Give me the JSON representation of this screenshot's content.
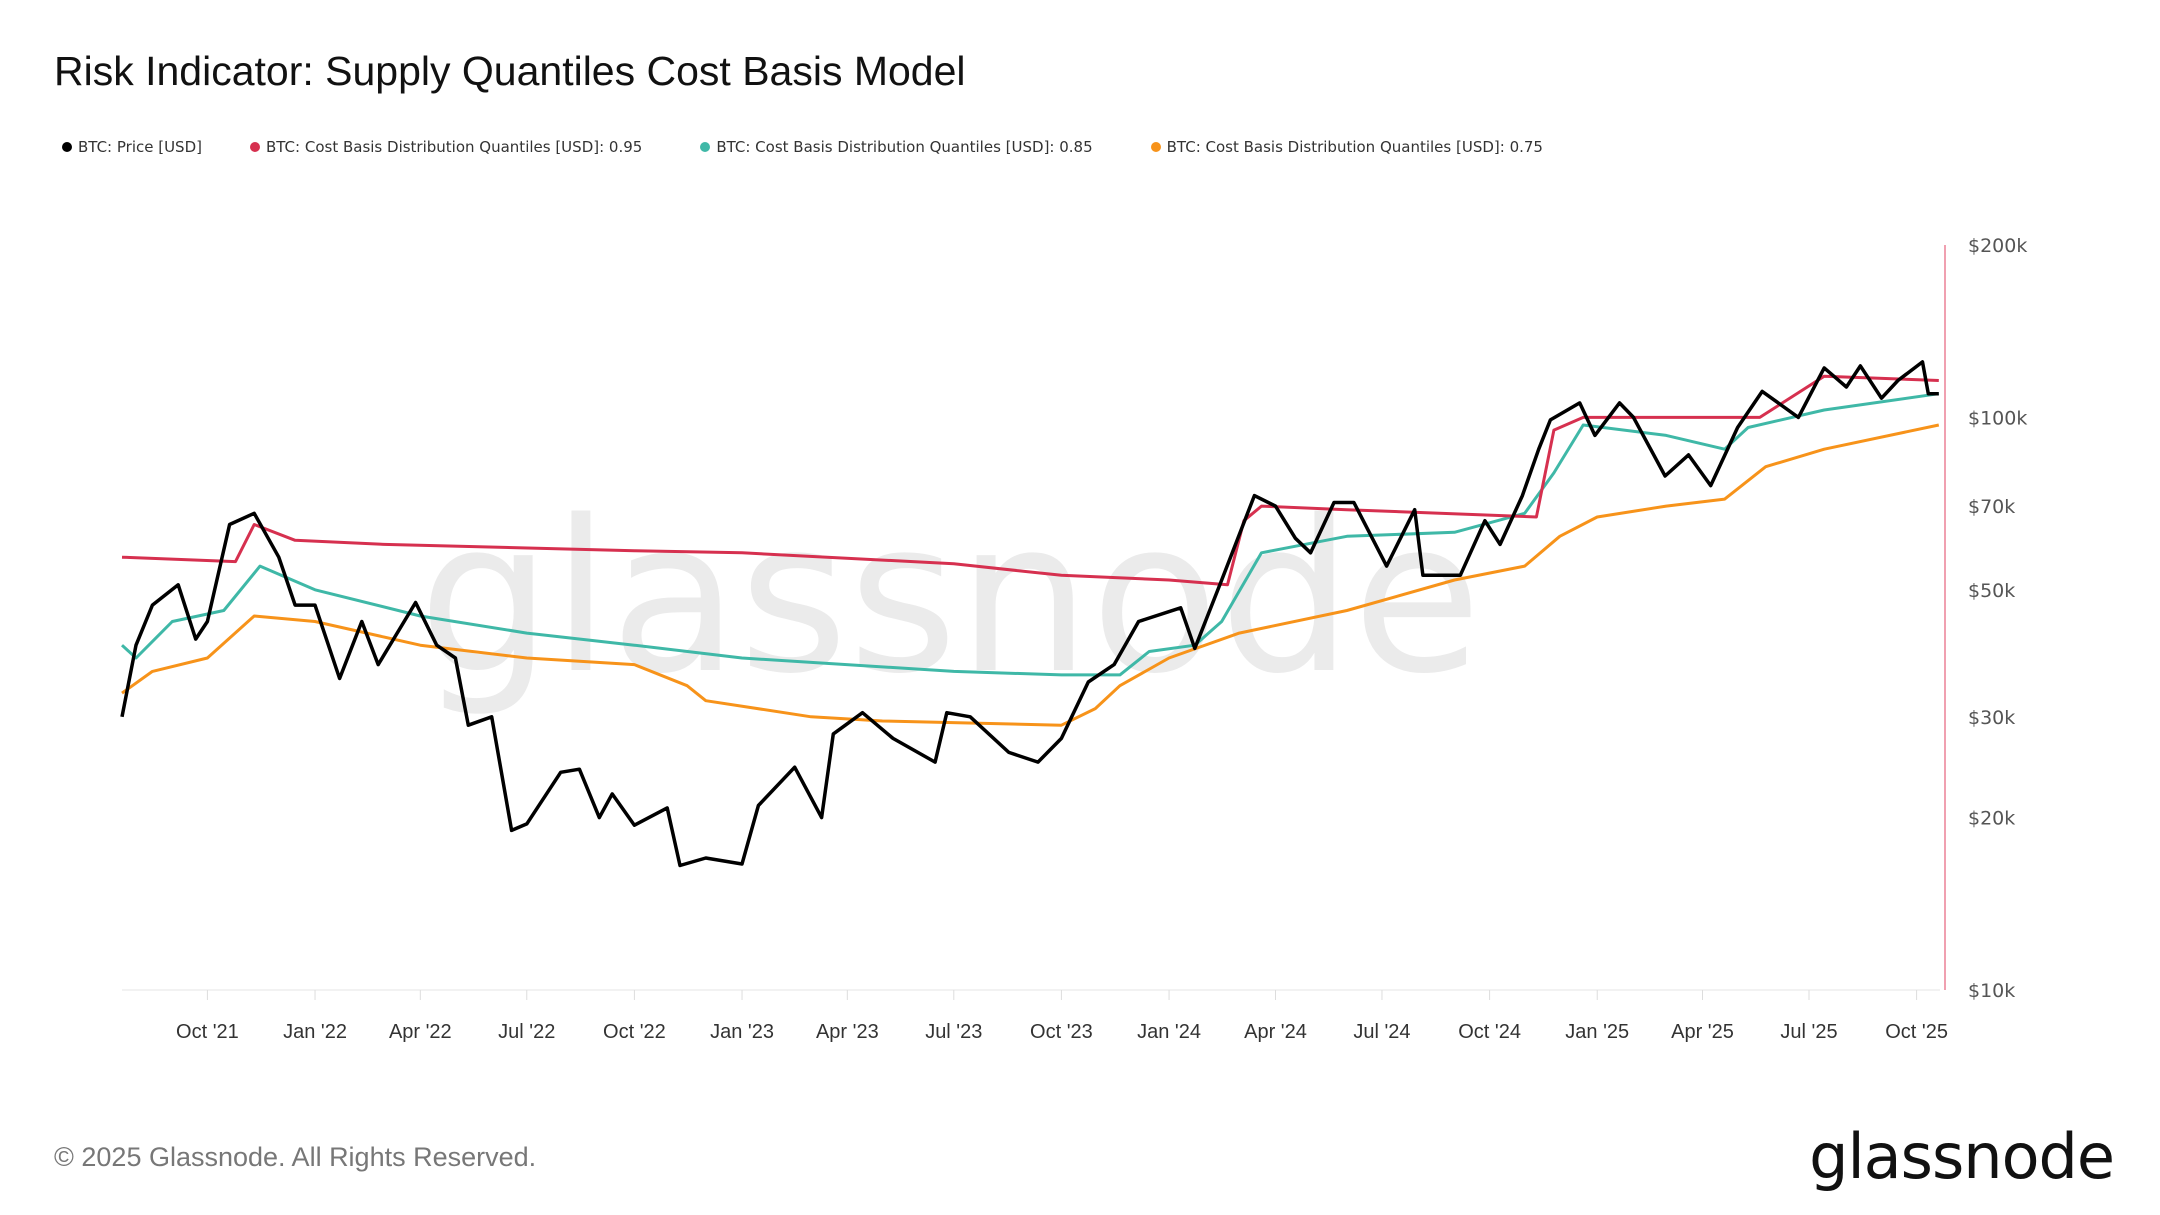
{
  "title": "Risk Indicator: Supply Quantiles Cost Basis Model",
  "copyright": "© 2025 Glassnode. All Rights Reserved.",
  "logo_text": "glassnode",
  "watermark_text": "glassnode",
  "chart_data": {
    "type": "line",
    "title": "Risk Indicator: Supply Quantiles Cost Basis Model",
    "y_scale": "log",
    "ylim": [
      10000,
      200000
    ],
    "xlim": [
      "2021-07-20",
      "2025-10-21"
    ],
    "grid": false,
    "legend_position": "top-left",
    "y_ticks": [
      {
        "value": 200000,
        "label": "$200k"
      },
      {
        "value": 100000,
        "label": "$100k"
      },
      {
        "value": 70000,
        "label": "$70k"
      },
      {
        "value": 50000,
        "label": "$50k"
      },
      {
        "value": 30000,
        "label": "$30k"
      },
      {
        "value": 20000,
        "label": "$20k"
      },
      {
        "value": 10000,
        "label": "$10k"
      }
    ],
    "x_ticks": [
      {
        "date": "2021-10-01",
        "label": "Oct '21"
      },
      {
        "date": "2022-01-01",
        "label": "Jan '22"
      },
      {
        "date": "2022-04-01",
        "label": "Apr '22"
      },
      {
        "date": "2022-07-01",
        "label": "Jul '22"
      },
      {
        "date": "2022-10-01",
        "label": "Oct '22"
      },
      {
        "date": "2023-01-01",
        "label": "Jan '23"
      },
      {
        "date": "2023-04-01",
        "label": "Apr '23"
      },
      {
        "date": "2023-07-01",
        "label": "Jul '23"
      },
      {
        "date": "2023-10-01",
        "label": "Oct '23"
      },
      {
        "date": "2024-01-01",
        "label": "Jan '24"
      },
      {
        "date": "2024-04-01",
        "label": "Apr '24"
      },
      {
        "date": "2024-07-01",
        "label": "Jul '24"
      },
      {
        "date": "2024-10-01",
        "label": "Oct '24"
      },
      {
        "date": "2025-01-01",
        "label": "Jan '25"
      },
      {
        "date": "2025-04-01",
        "label": "Apr '25"
      },
      {
        "date": "2025-07-01",
        "label": "Jul '25"
      },
      {
        "date": "2025-10-01",
        "label": "Oct '25"
      }
    ],
    "series": [
      {
        "name": "BTC: Price [USD]",
        "color": "#000000",
        "points": [
          [
            "2021-07-20",
            30000
          ],
          [
            "2021-08-01",
            40000
          ],
          [
            "2021-08-15",
            47000
          ],
          [
            "2021-09-06",
            51000
          ],
          [
            "2021-09-21",
            41000
          ],
          [
            "2021-10-01",
            44000
          ],
          [
            "2021-10-20",
            65000
          ],
          [
            "2021-11-10",
            68000
          ],
          [
            "2021-12-01",
            57000
          ],
          [
            "2021-12-15",
            47000
          ],
          [
            "2022-01-01",
            47000
          ],
          [
            "2022-01-22",
            35000
          ],
          [
            "2022-02-10",
            44000
          ],
          [
            "2022-02-24",
            37000
          ],
          [
            "2022-03-28",
            47500
          ],
          [
            "2022-04-15",
            40000
          ],
          [
            "2022-05-01",
            38000
          ],
          [
            "2022-05-12",
            29000
          ],
          [
            "2022-06-01",
            30000
          ],
          [
            "2022-06-18",
            19000
          ],
          [
            "2022-07-01",
            19500
          ],
          [
            "2022-07-30",
            24000
          ],
          [
            "2022-08-15",
            24300
          ],
          [
            "2022-09-01",
            20000
          ],
          [
            "2022-09-12",
            22000
          ],
          [
            "2022-10-01",
            19400
          ],
          [
            "2022-10-29",
            20800
          ],
          [
            "2022-11-09",
            16500
          ],
          [
            "2022-12-01",
            17000
          ],
          [
            "2023-01-01",
            16600
          ],
          [
            "2023-01-15",
            21000
          ],
          [
            "2023-02-15",
            24500
          ],
          [
            "2023-03-10",
            20000
          ],
          [
            "2023-03-20",
            28000
          ],
          [
            "2023-04-14",
            30500
          ],
          [
            "2023-05-10",
            27500
          ],
          [
            "2023-06-15",
            25000
          ],
          [
            "2023-06-25",
            30500
          ],
          [
            "2023-07-15",
            30000
          ],
          [
            "2023-08-17",
            26000
          ],
          [
            "2023-09-11",
            25000
          ],
          [
            "2023-10-01",
            27500
          ],
          [
            "2023-10-24",
            34500
          ],
          [
            "2023-11-15",
            37000
          ],
          [
            "2023-12-06",
            44000
          ],
          [
            "2024-01-11",
            46500
          ],
          [
            "2024-01-23",
            39500
          ],
          [
            "2024-02-15",
            52000
          ],
          [
            "2024-03-14",
            73000
          ],
          [
            "2024-04-01",
            70000
          ],
          [
            "2024-04-18",
            61500
          ],
          [
            "2024-05-01",
            58000
          ],
          [
            "2024-05-21",
            71000
          ],
          [
            "2024-06-07",
            71000
          ],
          [
            "2024-07-05",
            55000
          ],
          [
            "2024-07-29",
            69000
          ],
          [
            "2024-08-05",
            53000
          ],
          [
            "2024-09-06",
            53000
          ],
          [
            "2024-09-27",
            66000
          ],
          [
            "2024-10-10",
            60000
          ],
          [
            "2024-10-29",
            73000
          ],
          [
            "2024-11-12",
            88000
          ],
          [
            "2024-11-22",
            99000
          ],
          [
            "2024-12-17",
            106000
          ],
          [
            "2024-12-30",
            93000
          ],
          [
            "2025-01-20",
            106000
          ],
          [
            "2025-02-01",
            100000
          ],
          [
            "2025-02-28",
            79000
          ],
          [
            "2025-03-20",
            86000
          ],
          [
            "2025-04-08",
            76000
          ],
          [
            "2025-05-01",
            96000
          ],
          [
            "2025-05-22",
            111000
          ],
          [
            "2025-06-22",
            100000
          ],
          [
            "2025-07-14",
            122000
          ],
          [
            "2025-08-02",
            113000
          ],
          [
            "2025-08-14",
            123000
          ],
          [
            "2025-09-01",
            108000
          ],
          [
            "2025-09-15",
            116000
          ],
          [
            "2025-10-06",
            125000
          ],
          [
            "2025-10-11",
            110000
          ],
          [
            "2025-10-20",
            110000
          ]
        ]
      },
      {
        "name": "BTC: Cost Basis Distribution Quantiles [USD]: 0.95",
        "color": "#d6304f",
        "points": [
          [
            "2021-07-20",
            57000
          ],
          [
            "2021-10-25",
            56000
          ],
          [
            "2021-11-10",
            65000
          ],
          [
            "2021-12-15",
            61000
          ],
          [
            "2022-03-01",
            60000
          ],
          [
            "2022-10-01",
            58500
          ],
          [
            "2023-01-01",
            58000
          ],
          [
            "2023-07-01",
            55500
          ],
          [
            "2023-10-01",
            53000
          ],
          [
            "2024-01-01",
            52000
          ],
          [
            "2024-02-20",
            51000
          ],
          [
            "2024-03-05",
            66000
          ],
          [
            "2024-03-20",
            70000
          ],
          [
            "2024-06-01",
            69000
          ],
          [
            "2024-11-10",
            67000
          ],
          [
            "2024-11-25",
            95000
          ],
          [
            "2024-12-20",
            100000
          ],
          [
            "2025-05-20",
            100000
          ],
          [
            "2025-07-14",
            118000
          ],
          [
            "2025-10-20",
            116000
          ]
        ]
      },
      {
        "name": "BTC: Cost Basis Distribution Quantiles [USD]: 0.85",
        "color": "#3fb8a7",
        "points": [
          [
            "2021-07-20",
            40000
          ],
          [
            "2021-08-01",
            38000
          ],
          [
            "2021-09-01",
            44000
          ],
          [
            "2021-10-15",
            46000
          ],
          [
            "2021-11-15",
            55000
          ],
          [
            "2022-01-01",
            50000
          ],
          [
            "2022-04-01",
            45000
          ],
          [
            "2022-07-01",
            42000
          ],
          [
            "2022-10-01",
            40000
          ],
          [
            "2023-01-01",
            38000
          ],
          [
            "2023-07-01",
            36000
          ],
          [
            "2023-10-01",
            35500
          ],
          [
            "2023-11-20",
            35500
          ],
          [
            "2023-12-15",
            39000
          ],
          [
            "2024-01-23",
            40000
          ],
          [
            "2024-02-15",
            44000
          ],
          [
            "2024-03-20",
            58000
          ],
          [
            "2024-06-01",
            62000
          ],
          [
            "2024-09-01",
            63000
          ],
          [
            "2024-10-31",
            68000
          ],
          [
            "2024-11-25",
            80000
          ],
          [
            "2024-12-20",
            97000
          ],
          [
            "2025-03-01",
            93000
          ],
          [
            "2025-04-20",
            88000
          ],
          [
            "2025-05-10",
            96000
          ],
          [
            "2025-07-14",
            103000
          ],
          [
            "2025-10-20",
            110000
          ]
        ]
      },
      {
        "name": "BTC: Cost Basis Distribution Quantiles [USD]: 0.75",
        "color": "#f7931a",
        "points": [
          [
            "2021-07-20",
            33000
          ],
          [
            "2021-08-15",
            36000
          ],
          [
            "2021-10-01",
            38000
          ],
          [
            "2021-11-10",
            45000
          ],
          [
            "2022-01-01",
            44000
          ],
          [
            "2022-04-01",
            40000
          ],
          [
            "2022-07-01",
            38000
          ],
          [
            "2022-10-01",
            37000
          ],
          [
            "2022-11-15",
            34000
          ],
          [
            "2022-12-01",
            32000
          ],
          [
            "2023-03-01",
            30000
          ],
          [
            "2023-05-01",
            29500
          ],
          [
            "2023-10-01",
            29000
          ],
          [
            "2023-10-30",
            31000
          ],
          [
            "2023-11-20",
            34000
          ],
          [
            "2024-01-01",
            38000
          ],
          [
            "2024-03-01",
            42000
          ],
          [
            "2024-06-01",
            46000
          ],
          [
            "2024-09-01",
            52000
          ],
          [
            "2024-10-31",
            55000
          ],
          [
            "2024-11-30",
            62000
          ],
          [
            "2025-01-01",
            67000
          ],
          [
            "2025-03-01",
            70000
          ],
          [
            "2025-04-20",
            72000
          ],
          [
            "2025-05-25",
            82000
          ],
          [
            "2025-07-14",
            88000
          ],
          [
            "2025-10-20",
            97000
          ]
        ]
      }
    ]
  }
}
